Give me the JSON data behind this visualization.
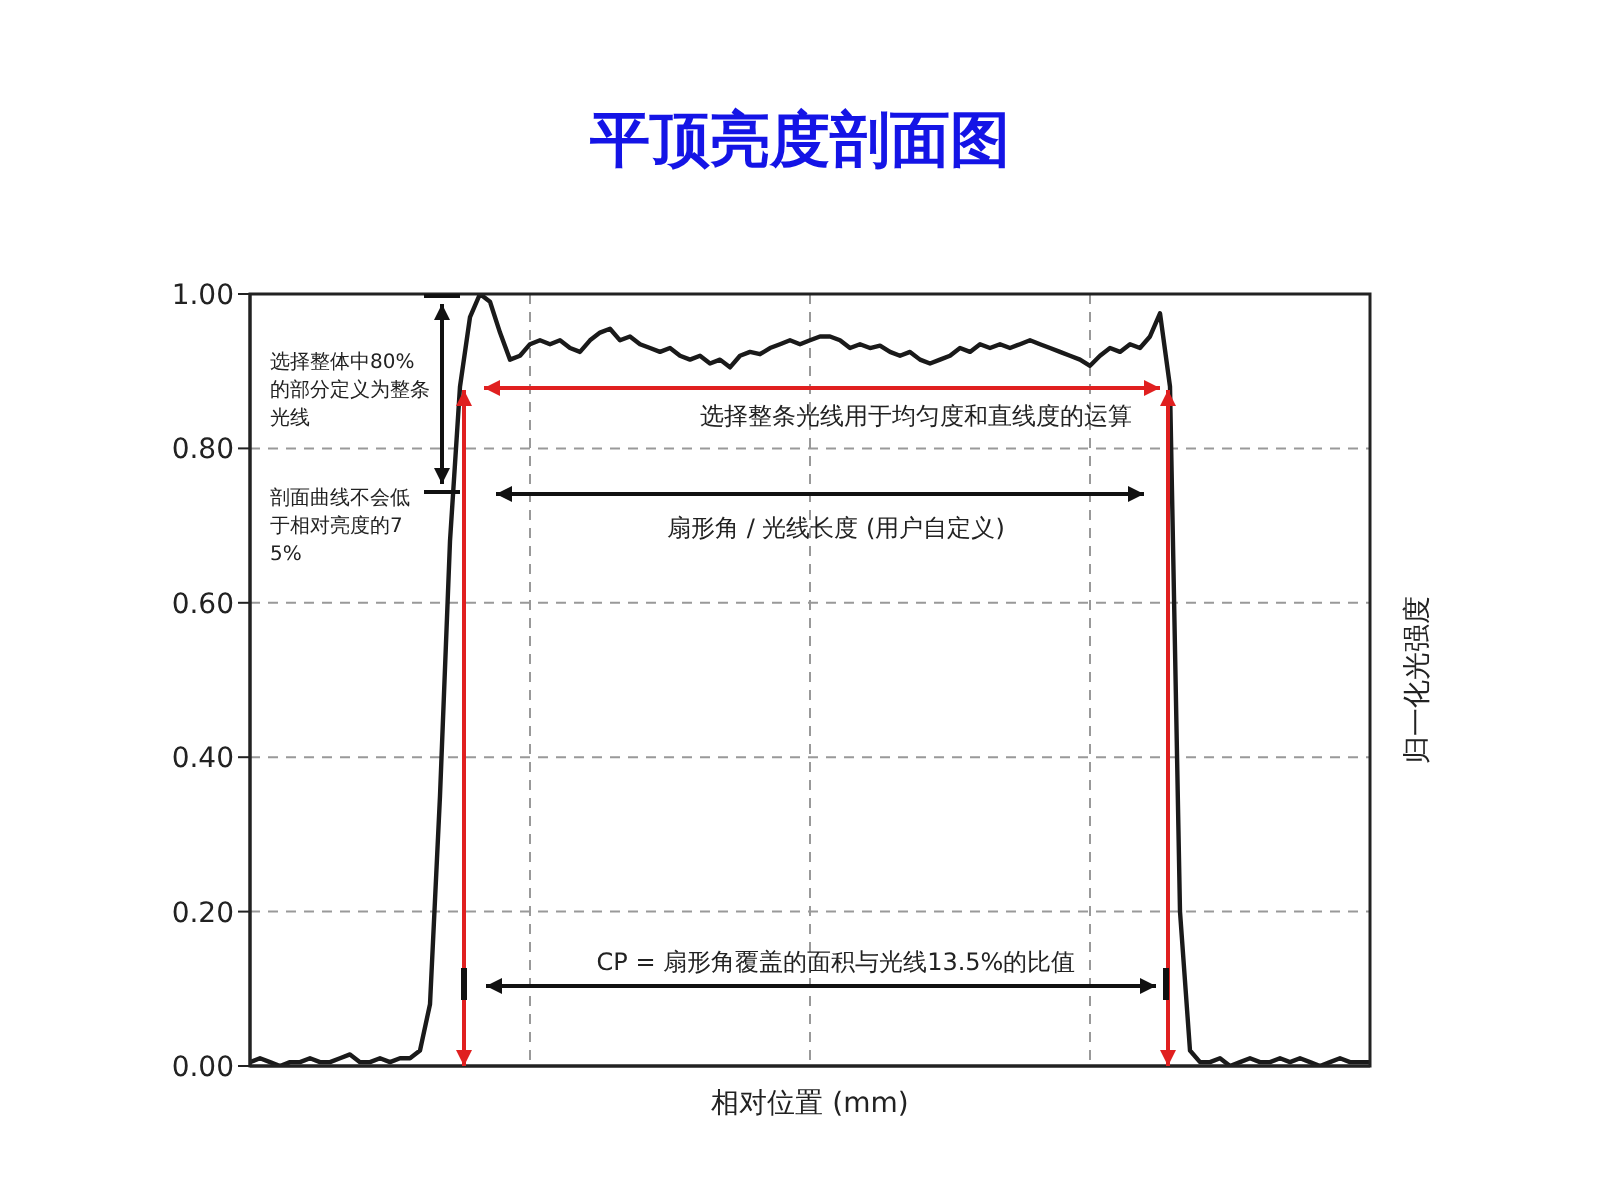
{
  "chart_data": {
    "type": "line",
    "title": "平顶亮度剖面图",
    "xlabel": "相对位置 (mm)",
    "ylabel": "归一化光强度",
    "categories": [
      null,
      null,
      null,
      null,
      null,
      null,
      null,
      null,
      null,
      null,
      null,
      null,
      null,
      null,
      null,
      null,
      null,
      null,
      null,
      null,
      null,
      null,
      null,
      null,
      null,
      null,
      null,
      null,
      null,
      null,
      null,
      null,
      null,
      null,
      null,
      null,
      null,
      null,
      null,
      null,
      null,
      null,
      null,
      null,
      null,
      null,
      null,
      null,
      null,
      null,
      null,
      null,
      null,
      null,
      null,
      null,
      null,
      null,
      null,
      null,
      null,
      null,
      null,
      null,
      null,
      null,
      null,
      null,
      null,
      null,
      null,
      null,
      null,
      null,
      null,
      null,
      null,
      null,
      null,
      null,
      null,
      null,
      null,
      null,
      null,
      null,
      null,
      null,
      null,
      null,
      null,
      null,
      null,
      null,
      null,
      null,
      null,
      null,
      null,
      null,
      null,
      null,
      null,
      null,
      null,
      null,
      null,
      null,
      null,
      null,
      null,
      null,
      null
    ],
    "series": [
      {
        "color": "#1a1a1a",
        "values": [
          0.005,
          0.01,
          0.005,
          0,
          0.005,
          0.005,
          0.01,
          0.005,
          0.005,
          0.01,
          0.015,
          0.005,
          0.005,
          0.01,
          0.005,
          0.01,
          0.01,
          0.02,
          0.08,
          0.35,
          0.68,
          0.88,
          0.97,
          1.0,
          0.99,
          0.95,
          0.915,
          0.92,
          0.935,
          0.94,
          0.935,
          0.94,
          0.93,
          0.925,
          0.94,
          0.95,
          0.955,
          0.94,
          0.945,
          0.935,
          0.93,
          0.925,
          0.93,
          0.92,
          0.915,
          0.92,
          0.91,
          0.915,
          0.905,
          0.92,
          0.925,
          0.922,
          0.93,
          0.935,
          0.94,
          0.935,
          0.94,
          0.945,
          0.945,
          0.94,
          0.93,
          0.935,
          0.93,
          0.933,
          0.925,
          0.92,
          0.925,
          0.915,
          0.91,
          0.915,
          0.92,
          0.93,
          0.925,
          0.935,
          0.93,
          0.935,
          0.93,
          0.935,
          0.94,
          0.935,
          0.93,
          0.925,
          0.92,
          0.915,
          0.907,
          0.92,
          0.93,
          0.925,
          0.935,
          0.93,
          0.945,
          0.975,
          0.88,
          0.2,
          0.02,
          0.005,
          0.005,
          0.01,
          0,
          0.005,
          0.01,
          0.005,
          0.005,
          0.01,
          0.005,
          0.01,
          0.005,
          0,
          0.005,
          0.01,
          0.005,
          0.005,
          0.005
        ]
      }
    ],
    "ylim": [
      0,
      1
    ],
    "yticks": [
      {
        "value": 0,
        "label": "0.00"
      },
      {
        "value": 0.2,
        "label": "0.20"
      },
      {
        "value": 0.4,
        "label": "0.40"
      },
      {
        "value": 0.6,
        "label": "0.60"
      },
      {
        "value": 0.8,
        "label": "0.80"
      },
      {
        "value": 1,
        "label": "1.00"
      }
    ],
    "grid": true,
    "line_style": "solid",
    "marker": "none",
    "annotations": [
      "选择整体中80%的部分定义为整条光线",
      "剖面曲线不会低于相对亮度的75%",
      "选择整条光线用于均匀度和直线度的运算",
      "扇形角 / 光线长度 (用户自定义)",
      "CP = 扇形角覆盖的面积与光线13.5%的比值"
    ]
  }
}
